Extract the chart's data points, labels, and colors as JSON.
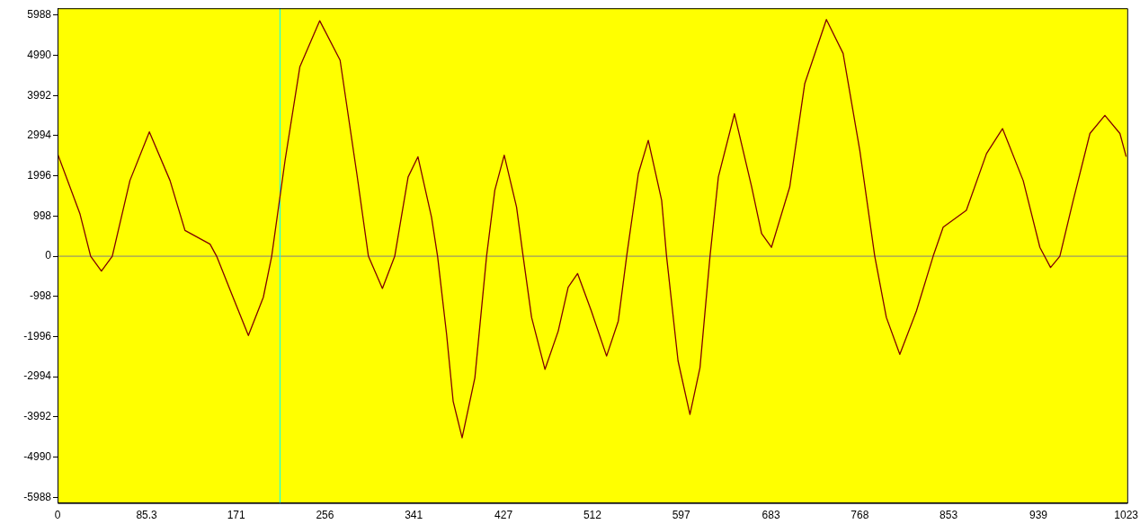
{
  "chart_data": {
    "type": "line",
    "x": [
      0,
      21.5,
      31.7,
      42,
      52.4,
      69.3,
      87.9,
      107.7,
      122,
      146,
      152.3,
      168,
      182.7,
      197,
      205,
      217.8,
      232,
      251,
      270.5,
      286.5,
      297.6,
      311,
      322.8,
      335.6,
      345,
      358,
      363.8,
      372.4,
      378.7,
      387.3,
      399.5,
      410.7,
      418.6,
      427.6,
      439.4,
      445.7,
      453.8,
      466.6,
      479.3,
      488.8,
      497.8,
      511,
      525.6,
      536.8,
      544.8,
      556,
      565.5,
      578.3,
      583,
      594,
      605.4,
      615,
      624.6,
      632.6,
      648,
      664.5,
      674,
      683.4,
      700.9,
      715.3,
      736,
      752,
      768,
      782.3,
      793.4,
      806.3,
      822.2,
      838.2,
      847.8,
      870,
      889.3,
      904.6,
      924.4,
      940.4,
      950.6,
      959.5,
      972.3,
      988.3,
      1002.6,
      1017,
      1023
    ],
    "series": [
      {
        "color": "#800000",
        "values": [
          2550,
          1050,
          0,
          -370,
          0,
          1880,
          3090,
          1880,
          640,
          300,
          0,
          -1020,
          -1970,
          -1020,
          0,
          2380,
          4710,
          5850,
          4870,
          2050,
          0,
          -800,
          0,
          1970,
          2470,
          970,
          0,
          -1930,
          -3600,
          -4510,
          -3020,
          0,
          1640,
          2510,
          1220,
          0,
          -1520,
          -2810,
          -1860,
          -770,
          -430,
          -1360,
          -2480,
          -1610,
          0,
          2050,
          2880,
          1390,
          0,
          -2600,
          -3930,
          -2770,
          0,
          1970,
          3540,
          1720,
          560,
          220,
          1720,
          4290,
          5880,
          5040,
          2630,
          0,
          -1520,
          -2440,
          -1360,
          0,
          720,
          1140,
          2550,
          3170,
          1880,
          220,
          -280,
          0,
          1390,
          3050,
          3500,
          3050,
          2470
        ]
      }
    ],
    "xlim": [
      0,
      1024
    ],
    "xticks": [
      0,
      85.3,
      171,
      256,
      341,
      427,
      512,
      597,
      683,
      768,
      853,
      939,
      1023
    ],
    "ylim": [
      -6130,
      6160
    ],
    "yticks": [
      5988,
      4990,
      3992,
      2994,
      1996,
      998,
      0,
      -998,
      -1996,
      -2994,
      -3992,
      -4990,
      -5988
    ],
    "ref_lines": [
      {
        "axis": "y",
        "value": 0,
        "color": "#808080"
      },
      {
        "axis": "x",
        "value": 213,
        "color": "#00ffff"
      }
    ]
  }
}
